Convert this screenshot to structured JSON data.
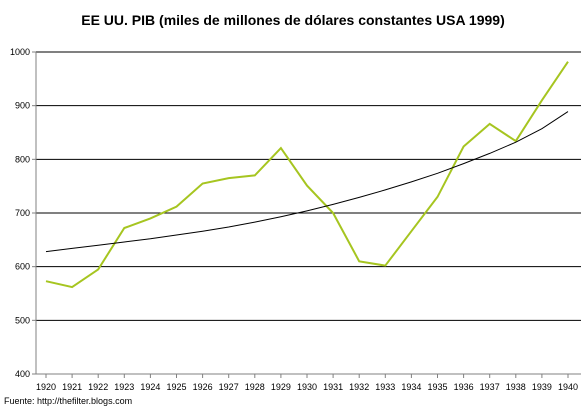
{
  "source_note": "Fuente: http://thefilter.blogs.com",
  "colors": {
    "series": "#a6c520",
    "trend": "#000000",
    "grid": "#000000",
    "axis": "#808080"
  },
  "chart_data": {
    "type": "line",
    "title": "EE UU. PIB (miles de millones de dólares constantes USA 1999)",
    "xlabel": "",
    "ylabel": "",
    "ylim": [
      400,
      1000
    ],
    "yticks": [
      400,
      500,
      600,
      700,
      800,
      900,
      1000
    ],
    "grid": true,
    "legend": "none",
    "x": [
      "1920",
      "1921",
      "1922",
      "1923",
      "1924",
      "1925",
      "1926",
      "1927",
      "1928",
      "1929",
      "1930",
      "1931",
      "1932",
      "1933",
      "1934",
      "1935",
      "1936",
      "1937",
      "1938",
      "1939",
      "1940"
    ],
    "series": [
      {
        "values": [
          573,
          562,
          595,
          672,
          690,
          712,
          755,
          765,
          770,
          821,
          751,
          700,
          610,
          602,
          666,
          730,
          824,
          866,
          834,
          910,
          982
        ]
      },
      {
        "trendline": true,
        "values": [
          628,
          634,
          640,
          646,
          652,
          659,
          666,
          674,
          683,
          693,
          704,
          716,
          729,
          743,
          758,
          774,
          792,
          811,
          832,
          857,
          889
        ]
      }
    ]
  }
}
